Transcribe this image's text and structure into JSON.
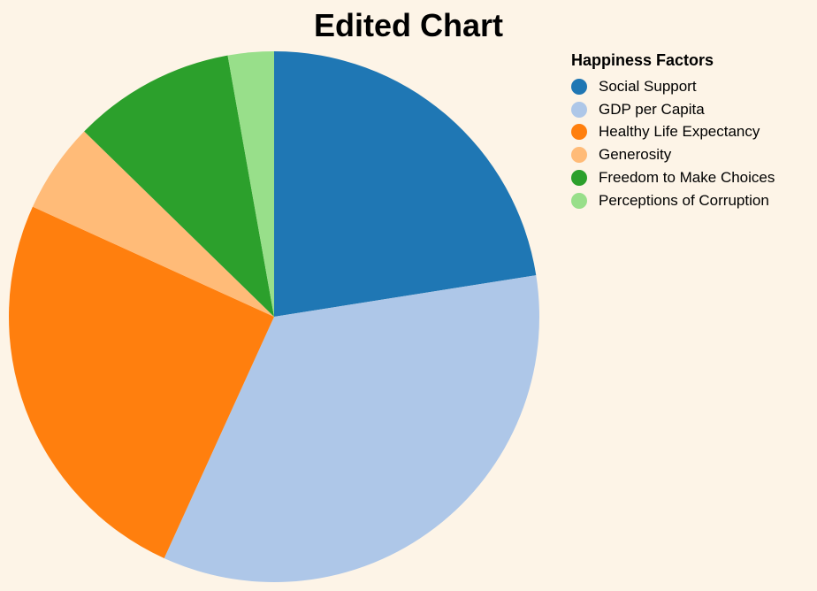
{
  "chart_data": {
    "type": "pie",
    "title": "Edited Chart",
    "legend_title": "Happiness Factors",
    "legend_position": "top-right",
    "series": [
      {
        "name": "Social Support",
        "value": 22.5,
        "color": "#1f77b4"
      },
      {
        "name": "GDP per Capita",
        "value": 34.3,
        "color": "#aec7e8"
      },
      {
        "name": "Healthy Life Expectancy",
        "value": 25.0,
        "color": "#ff7f0e"
      },
      {
        "name": "Generosity",
        "value": 5.5,
        "color": "#ffbb78"
      },
      {
        "name": "Freedom to Make Choices",
        "value": 9.9,
        "color": "#2ca02c"
      },
      {
        "name": "Perceptions of Corruption",
        "value": 2.8,
        "color": "#98df8a"
      }
    ]
  }
}
